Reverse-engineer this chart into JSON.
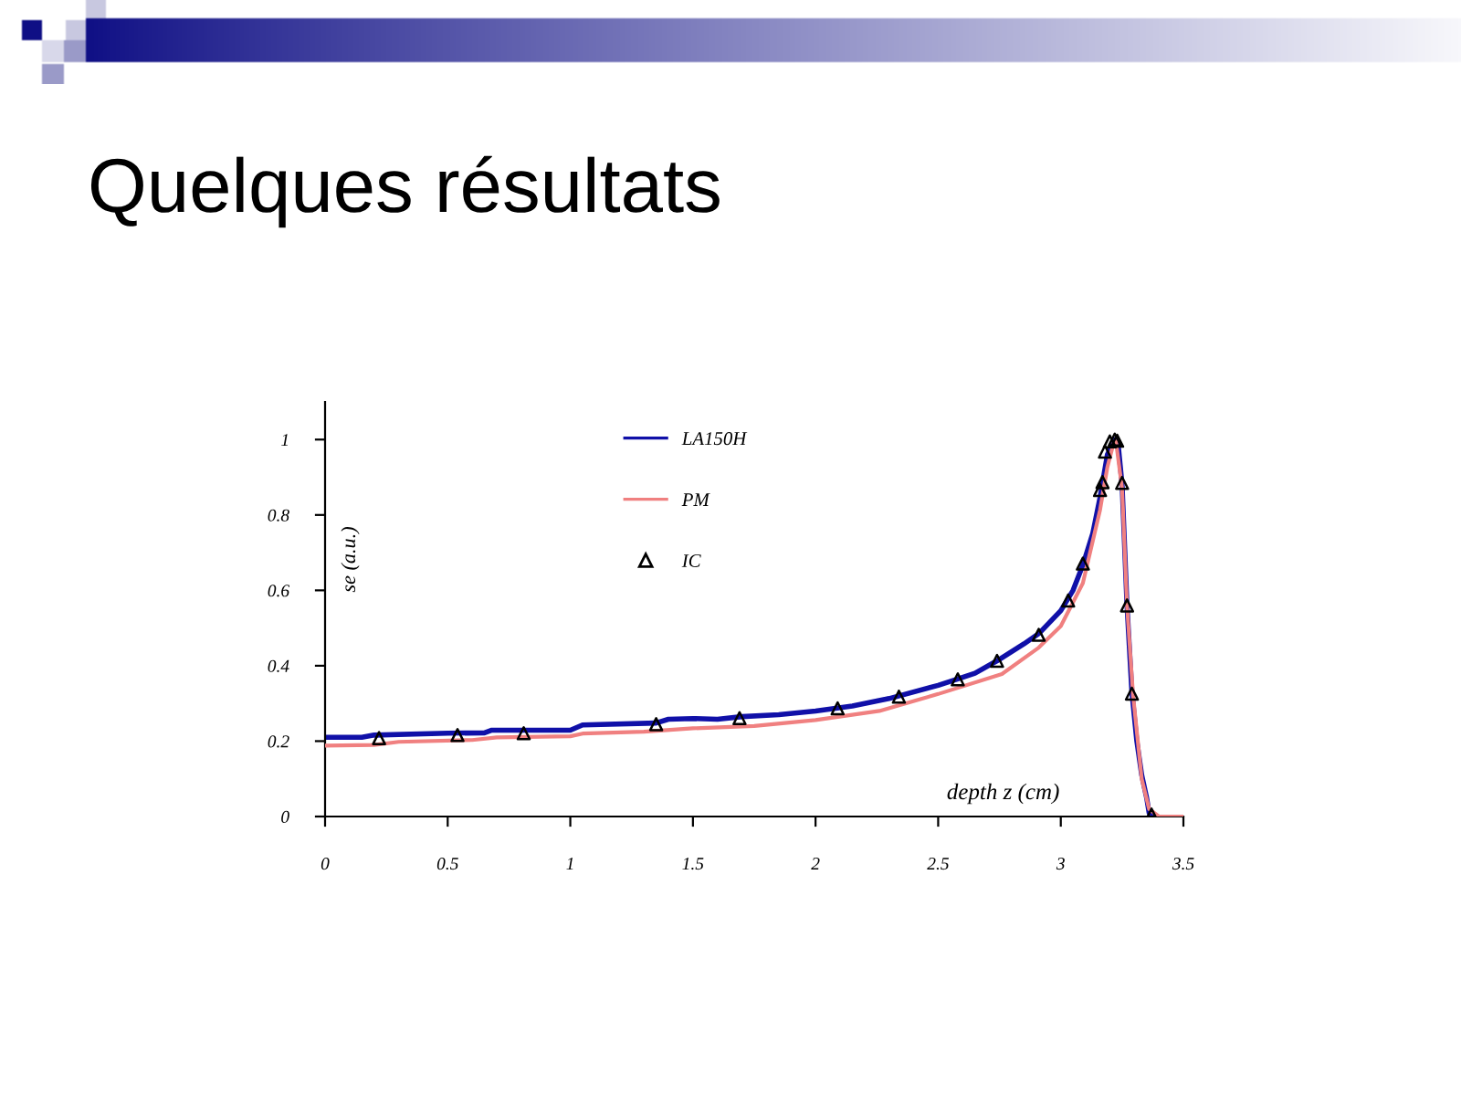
{
  "chart_data": {
    "type": "line",
    "title": "Quelques résultats",
    "xlabel": "depth z (cm)",
    "ylabel": "se (a.u.)",
    "xlim": [
      0,
      3.5
    ],
    "ylim": [
      0,
      1.1
    ],
    "xticks": [
      0,
      0.5,
      1,
      1.5,
      2,
      2.5,
      3,
      3.5
    ],
    "yticks": [
      0,
      0.2,
      0.4,
      0.6,
      0.8,
      1
    ],
    "grid": false,
    "legend": "top",
    "series": [
      {
        "name": "LA150H",
        "color": "#1010a8",
        "x": [
          0,
          0.15,
          0.2,
          0.5,
          0.65,
          0.68,
          1.0,
          1.05,
          1.35,
          1.4,
          1.5,
          1.6,
          1.7,
          1.85,
          2.0,
          2.15,
          2.3,
          2.5,
          2.58,
          2.65,
          2.74,
          2.85,
          2.91,
          3.0,
          3.05,
          3.09,
          3.13,
          3.16,
          3.19,
          3.22,
          3.235,
          3.25,
          3.27,
          3.29,
          3.31,
          3.33,
          3.35,
          3.36,
          3.39
        ],
        "values": [
          0.21,
          0.21,
          0.216,
          0.221,
          0.222,
          0.229,
          0.229,
          0.243,
          0.248,
          0.258,
          0.26,
          0.258,
          0.265,
          0.27,
          0.28,
          0.293,
          0.313,
          0.348,
          0.365,
          0.38,
          0.413,
          0.458,
          0.485,
          0.546,
          0.6,
          0.667,
          0.75,
          0.846,
          0.96,
          1.0,
          0.98,
          0.88,
          0.56,
          0.33,
          0.2,
          0.11,
          0.05,
          0.01,
          0
        ]
      },
      {
        "name": "PM",
        "color": "#f08080",
        "x": [
          0,
          0.2,
          0.3,
          0.6,
          0.7,
          1.0,
          1.05,
          1.3,
          1.5,
          1.75,
          2.0,
          2.26,
          2.5,
          2.76,
          2.91,
          3.0,
          3.09,
          3.16,
          3.19,
          3.215,
          3.225,
          3.25,
          3.27,
          3.295,
          3.33,
          3.36,
          3.4,
          3.5
        ],
        "values": [
          0.188,
          0.19,
          0.198,
          0.203,
          0.21,
          0.213,
          0.22,
          0.225,
          0.234,
          0.24,
          0.256,
          0.28,
          0.325,
          0.378,
          0.448,
          0.505,
          0.619,
          0.813,
          0.927,
          0.99,
          0.995,
          0.87,
          0.56,
          0.32,
          0.1,
          0.02,
          0,
          0
        ]
      },
      {
        "name": "IC",
        "type": "scatter",
        "color": "#000000",
        "marker": "triangle",
        "x": [
          0.22,
          0.54,
          0.81,
          1.35,
          1.69,
          2.09,
          2.34,
          2.58,
          2.74,
          2.91,
          3.03,
          3.09,
          3.16,
          3.17,
          3.18,
          3.2,
          3.22,
          3.23,
          3.25,
          3.27,
          3.29,
          3.37
        ],
        "values": [
          0.208,
          0.216,
          0.221,
          0.245,
          0.261,
          0.287,
          0.318,
          0.364,
          0.413,
          0.482,
          0.573,
          0.671,
          0.866,
          0.887,
          0.968,
          0.995,
          1.0,
          0.997,
          0.885,
          0.56,
          0.326,
          0.005
        ]
      }
    ]
  }
}
